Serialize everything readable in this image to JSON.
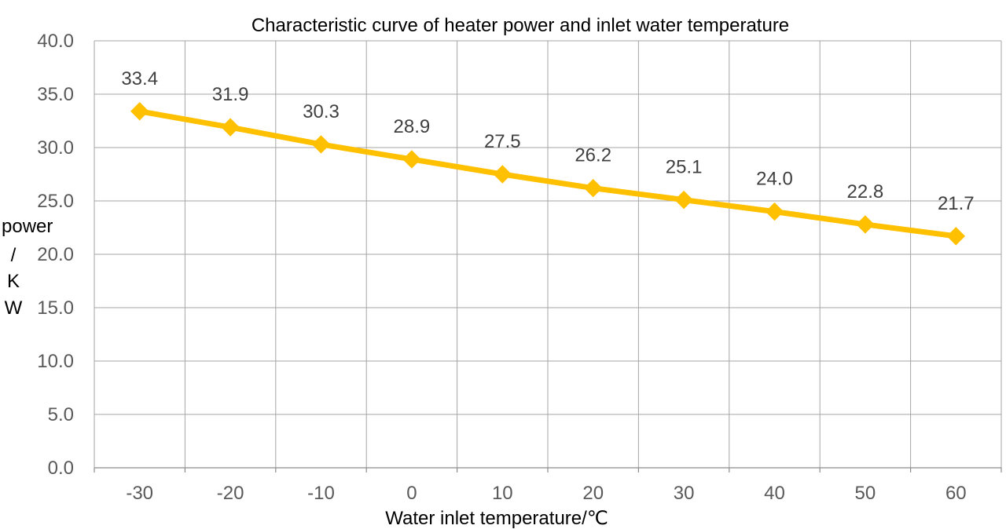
{
  "chart_data": {
    "type": "line",
    "title": "Characteristic curve of heater power and inlet water temperature",
    "xlabel": "Water inlet temperature/℃",
    "ylabel_lines": [
      "power",
      "/",
      "K",
      "W"
    ],
    "categories": [
      "-30",
      "-20",
      "-10",
      "0",
      "10",
      "20",
      "30",
      "40",
      "50",
      "60"
    ],
    "series": [
      {
        "values": [
          33.4,
          31.9,
          30.3,
          28.9,
          27.5,
          26.2,
          25.1,
          24.0,
          22.8,
          21.7
        ],
        "labels": [
          "33.4",
          "31.9",
          "30.3",
          "28.9",
          "27.5",
          "26.2",
          "25.1",
          "24.0",
          "22.8",
          "21.7"
        ],
        "color": "#FFC000",
        "marker": "diamond"
      }
    ],
    "yticks": [
      "0.0",
      "5.0",
      "10.0",
      "15.0",
      "20.0",
      "25.0",
      "30.0",
      "35.0",
      "40.0"
    ],
    "ylim": [
      0,
      40
    ],
    "grid": true,
    "legend": "none"
  }
}
